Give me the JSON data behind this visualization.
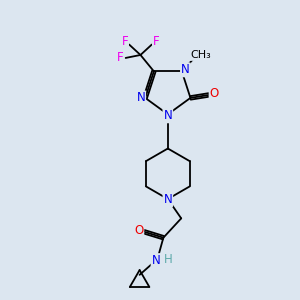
{
  "bg_color": "#dce6f0",
  "atom_colors": {
    "N": "#0000ee",
    "O": "#ee0000",
    "F": "#ee00ee",
    "H": "#5faaaa"
  },
  "bond_lw": 1.3,
  "font_size": 8.5
}
